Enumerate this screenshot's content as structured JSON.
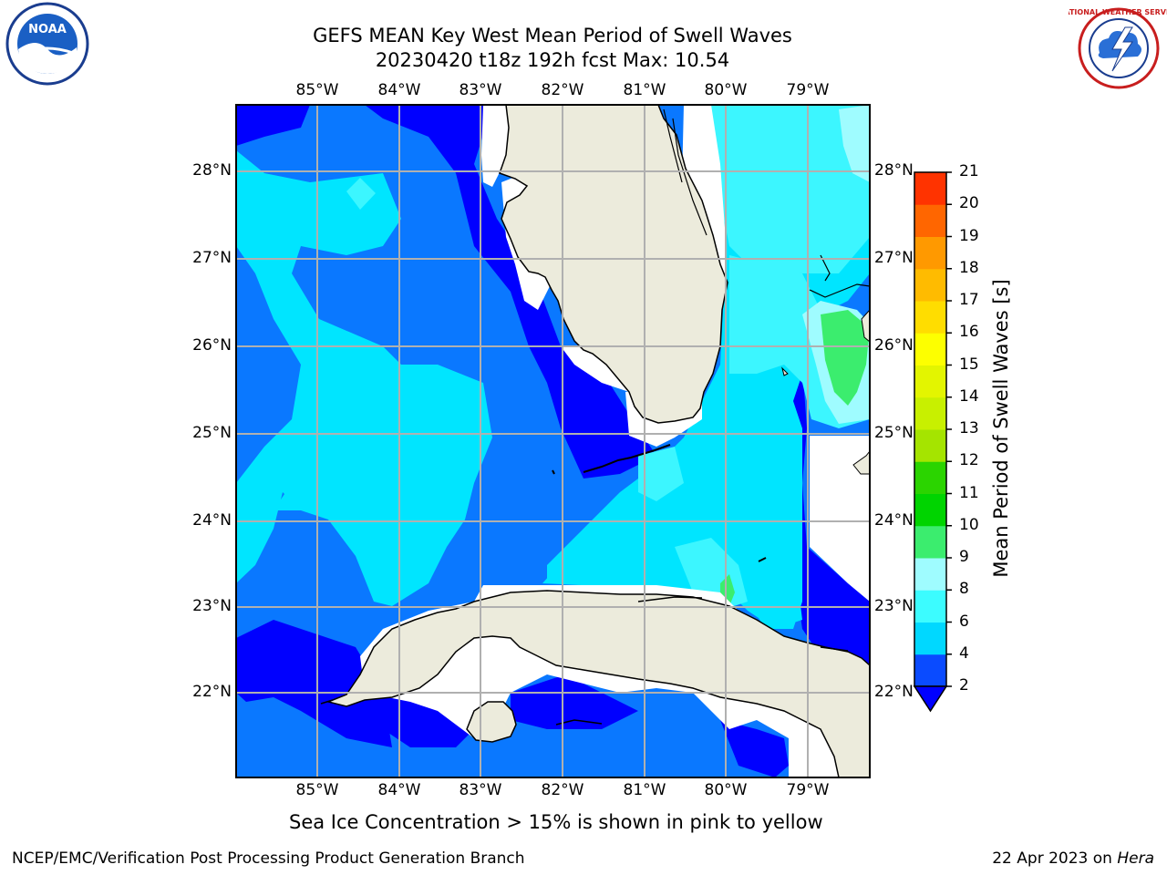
{
  "title": {
    "line1": "GEFS MEAN Key West Mean Period of Swell Waves",
    "line2": "20230420 t18z 192h fcst   Max: 10.54"
  },
  "logos": {
    "noaa": {
      "text": "NOAA",
      "ring_text": "NATIONAL OCEANIC AND ATMOSPHERIC ADMINISTRATION · U.S. DEPARTMENT OF COMMERCE"
    },
    "nws": {
      "ring_text": "NATIONAL WEATHER SERVICE"
    }
  },
  "map": {
    "lon_labels": [
      "85°W",
      "84°W",
      "83°W",
      "82°W",
      "81°W",
      "80°W",
      "79°W"
    ],
    "lat_labels": [
      "28°N",
      "27°N",
      "26°N",
      "25°N",
      "24°N",
      "23°N",
      "22°N"
    ],
    "land_color": "#ecebdc",
    "grid_color": "#b0b0b0"
  },
  "colorbar": {
    "label": "Mean Period of Swell Waves [s]",
    "ticks": [
      "2",
      "4",
      "6",
      "8",
      "9",
      "10",
      "11",
      "12",
      "13",
      "14",
      "15",
      "16",
      "17",
      "18",
      "19",
      "20",
      "21"
    ],
    "colors": [
      "#0a4bff",
      "#00d8ff",
      "#3cfcff",
      "#9ffcff",
      "#3bed6e",
      "#00d400",
      "#2bd400",
      "#a5e400",
      "#c8f000",
      "#e3f500",
      "#fdff00",
      "#ffdd00",
      "#ffbb00",
      "#ff9900",
      "#ff6600",
      "#ff3300",
      "#ff0000"
    ],
    "extend_color": "#0000ff"
  },
  "caption": "Sea Ice Concentration > 15% is shown in pink to yellow",
  "footer": {
    "left": "NCEP/EMC/Verification Post Processing Product Generation Branch",
    "right_date": "22 Apr 2023 on",
    "right_host": "Hera"
  }
}
